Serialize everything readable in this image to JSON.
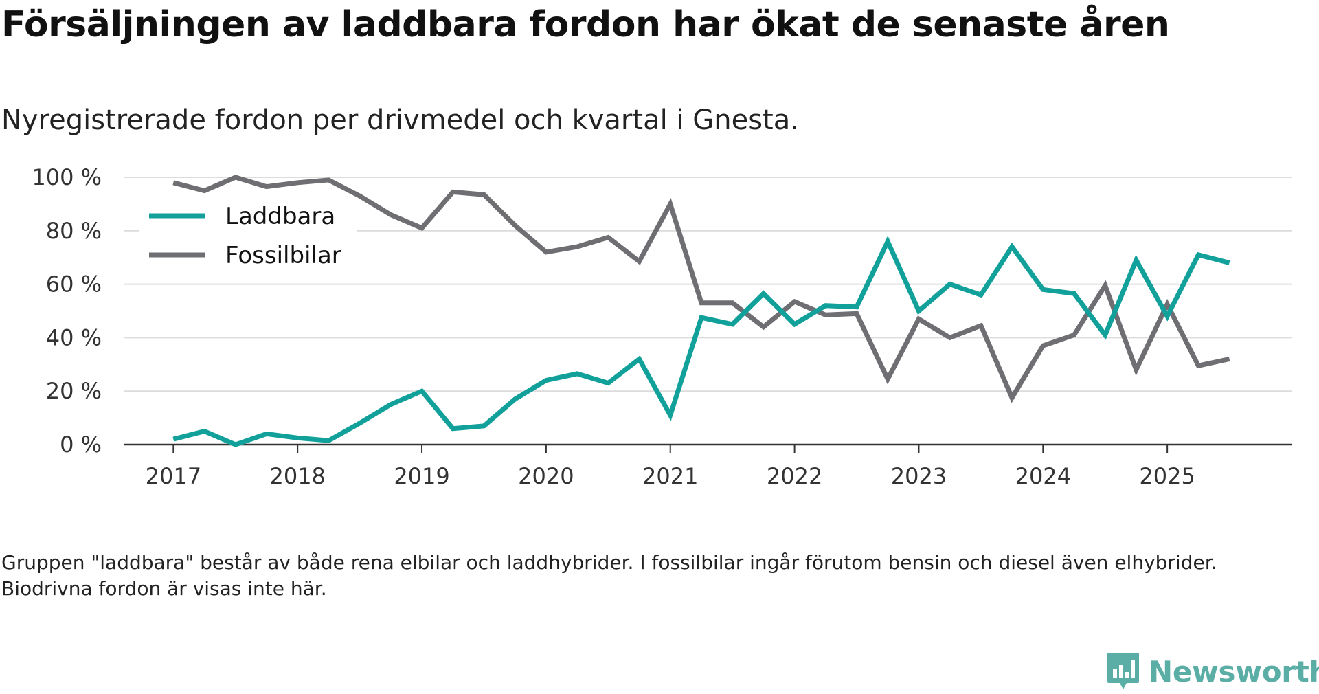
{
  "title": "Försäljningen av laddbara fordon har ökat de senaste åren",
  "subtitle": "Nyregistrerade fordon per drivmedel och kvartal i Gnesta.",
  "note": "Gruppen \"laddbara\" består av både rena elbilar och laddhybrider. I fossilbilar ingår förutom bensin och diesel även elhybrider. Biodrivna fordon är visas inte här.",
  "brand": {
    "name": "Newsworthy",
    "color": "#5aaea5"
  },
  "chart_data": {
    "type": "line",
    "title": "Försäljningen av laddbara fordon har ökat de senaste åren",
    "subtitle": "Nyregistrerade fordon per drivmedel och kvartal i Gnesta.",
    "xlabel": "",
    "ylabel": "",
    "xlim": [
      2016.6,
      2026.0
    ],
    "ylim": [
      0,
      100
    ],
    "yticks": [
      {
        "value": 0,
        "label": "0 %"
      },
      {
        "value": 20,
        "label": "20 %"
      },
      {
        "value": 40,
        "label": "40 %"
      },
      {
        "value": 60,
        "label": "60 %"
      },
      {
        "value": 80,
        "label": "80 %"
      },
      {
        "value": 100,
        "label": "100 %"
      }
    ],
    "xticks": [
      {
        "value": 2017,
        "label": "2017"
      },
      {
        "value": 2018,
        "label": "2018"
      },
      {
        "value": 2019,
        "label": "2019"
      },
      {
        "value": 2020,
        "label": "2020"
      },
      {
        "value": 2021,
        "label": "2021"
      },
      {
        "value": 2022,
        "label": "2022"
      },
      {
        "value": 2023,
        "label": "2023"
      },
      {
        "value": 2024,
        "label": "2024"
      },
      {
        "value": 2025,
        "label": "2025"
      }
    ],
    "grid": true,
    "legend": "top-left",
    "x": [
      2017.0,
      2017.25,
      2017.5,
      2017.75,
      2018.0,
      2018.25,
      2018.5,
      2018.75,
      2019.0,
      2019.25,
      2019.5,
      2019.75,
      2020.0,
      2020.25,
      2020.5,
      2020.75,
      2021.0,
      2021.25,
      2021.5,
      2021.75,
      2022.0,
      2022.25,
      2022.5,
      2022.75,
      2023.0,
      2023.25,
      2023.5,
      2023.75,
      2024.0,
      2024.25,
      2024.5,
      2024.75,
      2025.0,
      2025.25,
      2025.5
    ],
    "series": [
      {
        "name": "Laddbara",
        "color": "#12a19a",
        "values": [
          2,
          5,
          0,
          4,
          2.5,
          1.5,
          8,
          15,
          20,
          6,
          7,
          17,
          24,
          26.5,
          23,
          32,
          11,
          47.5,
          45,
          56.5,
          45,
          52,
          51.5,
          76,
          50,
          60,
          56,
          74,
          58,
          56.5,
          41,
          69,
          48,
          71,
          68
        ]
      },
      {
        "name": "Fossilbilar",
        "color": "#6f6e73",
        "values": [
          98,
          95,
          100,
          96.5,
          98,
          99,
          93,
          86,
          81,
          94.5,
          93.5,
          82,
          72,
          74,
          77.5,
          68.5,
          90,
          53,
          53,
          44,
          53.5,
          48.5,
          49,
          24.5,
          47,
          40,
          44.5,
          17.5,
          37,
          41,
          59.5,
          28,
          52.5,
          29.5,
          32
        ]
      }
    ]
  }
}
